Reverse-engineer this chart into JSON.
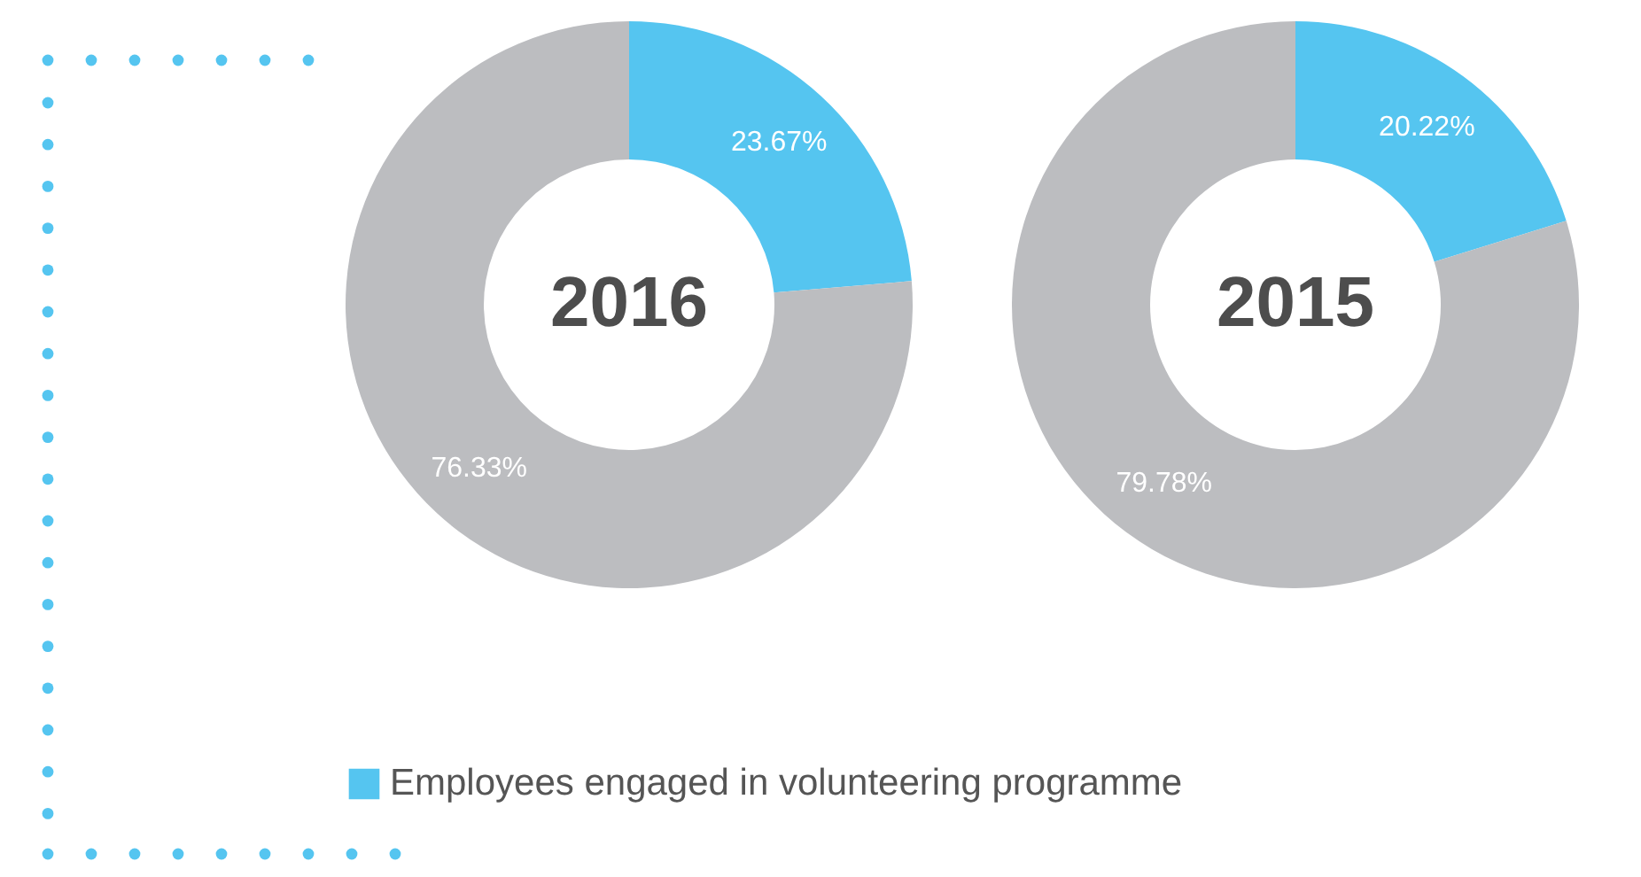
{
  "chart_data": [
    {
      "type": "donut",
      "title": "2016",
      "categories": [
        "Employees engaged in volunteering programme",
        null
      ],
      "values": [
        23.67,
        76.33
      ],
      "colors": [
        "#55c5f0",
        "#bcbdc0"
      ],
      "value_labels": [
        "23.67%",
        "76.33%"
      ],
      "legend": "bottom"
    },
    {
      "type": "donut",
      "title": "2015",
      "categories": [
        null,
        null
      ],
      "values": [
        20.22,
        79.78
      ],
      "colors": [
        "#55c5f0",
        "#bcbdc0"
      ],
      "value_labels": [
        "20.22%",
        "79.78%"
      ]
    }
  ]
}
